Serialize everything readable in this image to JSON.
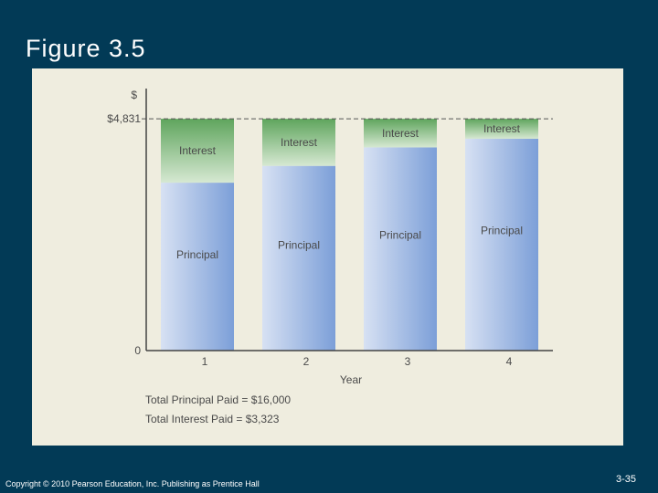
{
  "slide": {
    "title": "Figure 3.5",
    "copyright": "Copyright © 2010 Pearson Education, Inc.  Publishing as Prentice Hall",
    "page_number": "3-35"
  },
  "colors": {
    "background": "#023a56",
    "panel": "#efeddf",
    "principal_dark": "#7c9fd8",
    "principal_light": "#d7e1f3",
    "interest_dark": "#5fa55d",
    "interest_light": "#d6e8d2"
  },
  "chart_data": {
    "type": "bar",
    "stacked": true,
    "categories": [
      "1",
      "2",
      "3",
      "4"
    ],
    "series": [
      {
        "name": "Principal",
        "values": [
          3500,
          3850,
          4235,
          4415
        ]
      },
      {
        "name": "Interest",
        "values": [
          1331,
          981,
          596,
          416
        ]
      }
    ],
    "xlabel": "Year",
    "ylabel": "$",
    "ylim": [
      0,
      5500
    ],
    "y_ticks": [
      {
        "value": 0,
        "label": "0"
      },
      {
        "value": 4831,
        "label": "$4,831"
      }
    ],
    "reference_line": {
      "value": 4831,
      "style": "dashed"
    },
    "annotations": [
      "Total Principal Paid = $16,000",
      "Total Interest Paid   = $3,323"
    ]
  }
}
